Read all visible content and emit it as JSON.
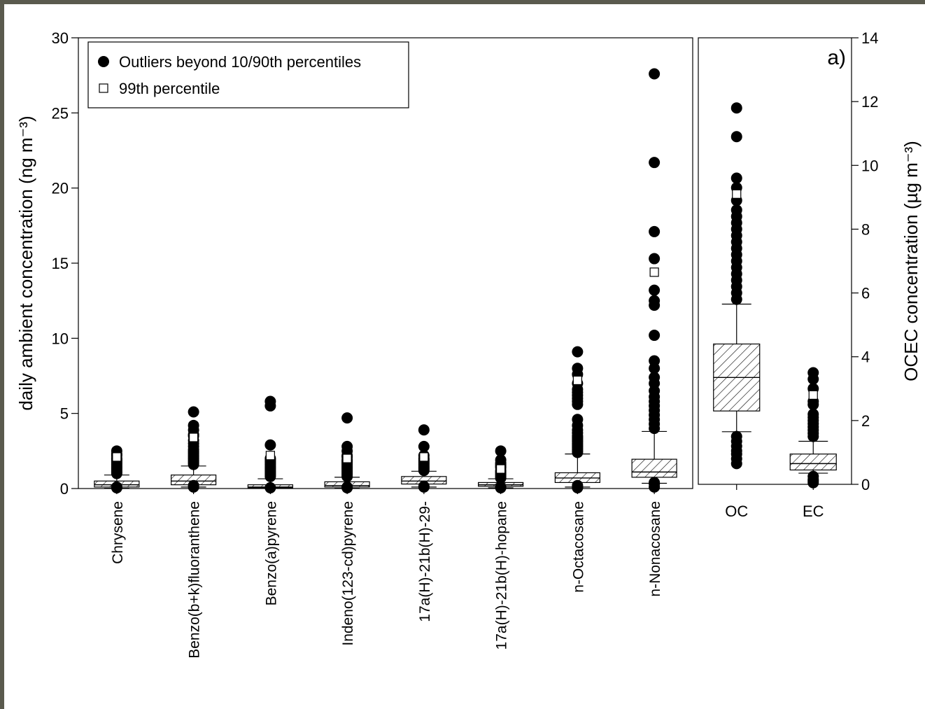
{
  "chart_data": [
    {
      "type": "box",
      "ylabel": "daily ambient concentration (ng m⁻³)",
      "ylim": [
        0,
        30
      ],
      "yticks": [
        0,
        5,
        10,
        15,
        20,
        25,
        30
      ],
      "legend": {
        "placement": "top-left",
        "entries": [
          {
            "marker": "filled-circle",
            "label": "Outliers beyond 10/90th percentiles"
          },
          {
            "marker": "open-square",
            "label": "99th percentile"
          }
        ]
      },
      "categories": [
        "Chrysene",
        "Benzo(b+k)fluoranthene",
        "Benzo(a)pyrene",
        "Indeno(123-cd)pyrene",
        "17a(H)-21b(H)-29-",
        "17a(H)-21b(H)-hopane",
        "n-Octacosane",
        "n-Nonacosane"
      ],
      "boxes": [
        {
          "whisker_low": 0.02,
          "q1": 0.1,
          "median": 0.25,
          "q3": 0.5,
          "whisker_high": 0.9,
          "p99": 2.1,
          "outliers": [
            0.05,
            0.1,
            1.0,
            1.1,
            1.2,
            1.3,
            1.4,
            1.5,
            1.6,
            1.7,
            1.8,
            1.9,
            2.0,
            2.2,
            2.3,
            2.5
          ]
        },
        {
          "whisker_low": 0.1,
          "q1": 0.25,
          "median": 0.5,
          "q3": 0.9,
          "whisker_high": 1.5,
          "p99": 3.4,
          "outliers": [
            0.1,
            0.2,
            1.6,
            1.7,
            1.8,
            1.9,
            2.0,
            2.1,
            2.2,
            2.3,
            2.4,
            2.5,
            2.6,
            2.8,
            3.0,
            3.2,
            3.5,
            3.6,
            3.9,
            4.2,
            5.1
          ]
        },
        {
          "whisker_low": 0.02,
          "q1": 0.05,
          "median": 0.1,
          "q3": 0.25,
          "whisker_high": 0.65,
          "p99": 2.2,
          "outliers": [
            0.05,
            0.8,
            0.9,
            1.0,
            1.1,
            1.2,
            1.3,
            1.4,
            1.5,
            1.6,
            1.7,
            1.8,
            1.9,
            2.0,
            2.9,
            5.5,
            5.8
          ]
        },
        {
          "whisker_low": 0.02,
          "q1": 0.1,
          "median": 0.2,
          "q3": 0.45,
          "whisker_high": 0.75,
          "p99": 2.0,
          "outliers": [
            0.05,
            0.1,
            0.8,
            0.9,
            1.0,
            1.1,
            1.2,
            1.3,
            1.4,
            1.5,
            1.6,
            1.7,
            1.8,
            1.9,
            2.1,
            2.2,
            2.5,
            2.8,
            4.7
          ]
        },
        {
          "whisker_low": 0.1,
          "q1": 0.3,
          "median": 0.5,
          "q3": 0.8,
          "whisker_high": 1.15,
          "p99": 2.1,
          "outliers": [
            0.1,
            0.15,
            1.2,
            1.3,
            1.4,
            1.5,
            1.6,
            1.7,
            1.8,
            1.9,
            2.0,
            2.2,
            2.8,
            3.9
          ]
        },
        {
          "whisker_low": 0.05,
          "q1": 0.15,
          "median": 0.25,
          "q3": 0.4,
          "whisker_high": 0.65,
          "p99": 1.3,
          "outliers": [
            0.05,
            0.1,
            0.7,
            0.8,
            0.9,
            1.0,
            1.1,
            1.2,
            1.4,
            1.5,
            1.6,
            1.7,
            1.9,
            2.5
          ]
        },
        {
          "whisker_low": 0.1,
          "q1": 0.4,
          "median": 0.7,
          "q3": 1.05,
          "whisker_high": 2.3,
          "p99": 7.2,
          "outliers": [
            0.05,
            0.1,
            0.2,
            2.4,
            2.5,
            2.6,
            2.7,
            2.8,
            2.9,
            3.0,
            3.1,
            3.2,
            3.3,
            3.4,
            3.5,
            3.7,
            3.9,
            4.2,
            4.6,
            5.6,
            5.8,
            6.0,
            6.2,
            6.4,
            6.6,
            7.0,
            7.6,
            8.0,
            9.1
          ]
        },
        {
          "whisker_low": 0.35,
          "q1": 0.75,
          "median": 1.1,
          "q3": 1.95,
          "whisker_high": 3.8,
          "p99": 14.4,
          "outliers": [
            0.1,
            0.3,
            0.4,
            4.0,
            4.3,
            4.6,
            4.9,
            5.2,
            5.5,
            5.8,
            6.1,
            6.5,
            7.0,
            7.4,
            8.0,
            8.5,
            10.2,
            12.2,
            12.5,
            13.2,
            15.3,
            17.1,
            21.7,
            27.6
          ]
        }
      ]
    },
    {
      "type": "box",
      "annotation": "a)",
      "ylabel": "OCEC concentration (µg m⁻³)",
      "ylim": [
        0,
        14
      ],
      "yticks": [
        0,
        2,
        4,
        6,
        8,
        10,
        12,
        14
      ],
      "categories": [
        "OC",
        "EC"
      ],
      "boxes": [
        {
          "whisker_low": 1.65,
          "q1": 2.3,
          "median": 3.35,
          "q3": 4.4,
          "whisker_high": 5.65,
          "p99": 9.1,
          "outliers": [
            0.65,
            0.8,
            0.95,
            1.05,
            1.2,
            1.35,
            1.5,
            5.8,
            6.0,
            6.2,
            6.4,
            6.6,
            6.8,
            7.0,
            7.2,
            7.4,
            7.6,
            7.8,
            8.0,
            8.2,
            8.4,
            8.6,
            8.9,
            9.3,
            9.6,
            10.9,
            11.8
          ]
        },
        {
          "whisker_low": 0.35,
          "q1": 0.45,
          "median": 0.65,
          "q3": 0.95,
          "whisker_high": 1.35,
          "p99": 2.8,
          "outliers": [
            0.05,
            0.1,
            0.15,
            0.25,
            1.5,
            1.6,
            1.7,
            1.8,
            1.9,
            2.0,
            2.1,
            2.2,
            2.5,
            2.6,
            3.0,
            3.3,
            3.5
          ]
        }
      ]
    }
  ]
}
